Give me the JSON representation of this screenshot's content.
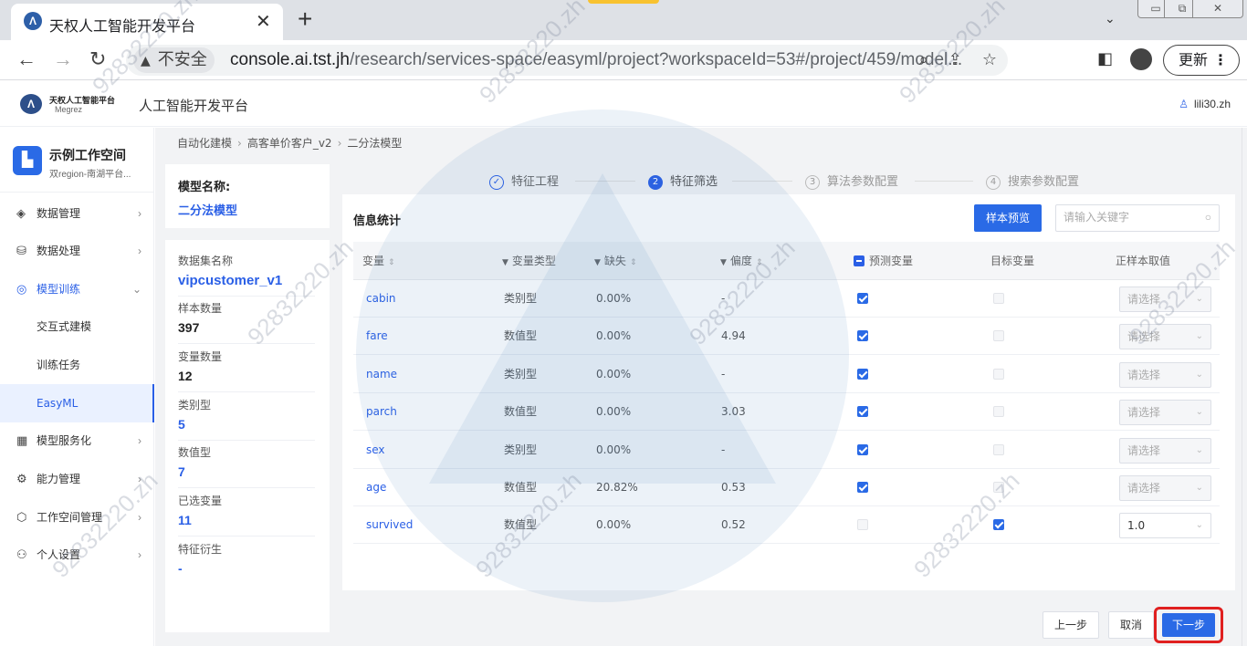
{
  "browser": {
    "tab_title": "天权人工智能开发平台",
    "tab_close": "✕",
    "new_tab": "+",
    "security_label": "不安全",
    "url_host": "console.ai.tst.jh",
    "url_path": "/research/services-space/easyml/project?workspaceId=53#/project/459/model...",
    "update_label": "更新"
  },
  "app": {
    "logo_cn": "天权人工智能平台",
    "logo_en": "Megrez",
    "title": "人工智能开发平台",
    "user": "lili30.zh"
  },
  "workspace": {
    "name": "示例工作空间",
    "region": "双region-南湖平台..."
  },
  "sidebar": {
    "items": [
      {
        "label": "数据管理",
        "icon": "layers-icon"
      },
      {
        "label": "数据处理",
        "icon": "database-icon"
      },
      {
        "label": "模型训练",
        "icon": "cube-icon"
      },
      {
        "label": "模型服务化",
        "icon": "calendar-icon"
      },
      {
        "label": "能力管理",
        "icon": "gear-icon"
      },
      {
        "label": "工作空间管理",
        "icon": "box-icon"
      },
      {
        "label": "个人设置",
        "icon": "person-icon"
      }
    ],
    "sub_items": [
      "交互式建模",
      "训练任务",
      "EasyML"
    ]
  },
  "breadcrumb": [
    "自动化建模",
    "高客单价客户_v2",
    "二分法模型"
  ],
  "model": {
    "label": "模型名称:",
    "name": "二分法模型"
  },
  "stats": [
    {
      "label": "数据集名称",
      "value": "vipcustomer_v1"
    },
    {
      "label": "样本数量",
      "value": "397"
    },
    {
      "label": "变量数量",
      "value": "12"
    },
    {
      "label": "类别型",
      "value": "5"
    },
    {
      "label": "数值型",
      "value": "7"
    },
    {
      "label": "已选变量",
      "value": "11"
    },
    {
      "label": "特征衍生",
      "value": "-"
    }
  ],
  "steps": [
    {
      "num": "✓",
      "label": "特征工程"
    },
    {
      "num": "2",
      "label": "特征筛选"
    },
    {
      "num": "3",
      "label": "算法参数配置"
    },
    {
      "num": "4",
      "label": "搜索参数配置"
    }
  ],
  "panel": {
    "title": "信息统计",
    "sample_preview": "样本预览",
    "search_placeholder": "请输入关键字"
  },
  "table": {
    "headers": [
      "变量",
      "变量类型",
      "缺失",
      "偏度",
      "预测变量",
      "目标变量",
      "正样本取值"
    ],
    "rows": [
      {
        "name": "cabin",
        "type": "类别型",
        "missing": "0.00%",
        "skew": "-",
        "predict": true,
        "target": false,
        "positive": "请选择"
      },
      {
        "name": "fare",
        "type": "数值型",
        "missing": "0.00%",
        "skew": "4.94",
        "predict": true,
        "target": false,
        "positive": "请选择"
      },
      {
        "name": "name",
        "type": "类别型",
        "missing": "0.00%",
        "skew": "-",
        "predict": true,
        "target": false,
        "positive": "请选择"
      },
      {
        "name": "parch",
        "type": "数值型",
        "missing": "0.00%",
        "skew": "3.03",
        "predict": true,
        "target": false,
        "positive": "请选择"
      },
      {
        "name": "sex",
        "type": "类别型",
        "missing": "0.00%",
        "skew": "-",
        "predict": true,
        "target": false,
        "positive": "请选择"
      },
      {
        "name": "age",
        "type": "数值型",
        "missing": "20.82%",
        "skew": "0.53",
        "predict": true,
        "target": false,
        "positive": "请选择"
      },
      {
        "name": "survived",
        "type": "数值型",
        "missing": "0.00%",
        "skew": "0.52",
        "predict": false,
        "target": true,
        "positive": "1.0"
      }
    ]
  },
  "footer": {
    "prev": "上一步",
    "cancel": "取消",
    "next": "下一步"
  },
  "watermark": "92832220.zh",
  "colors": {
    "accent": "#2a6ae6",
    "highlight": "#e02020"
  }
}
